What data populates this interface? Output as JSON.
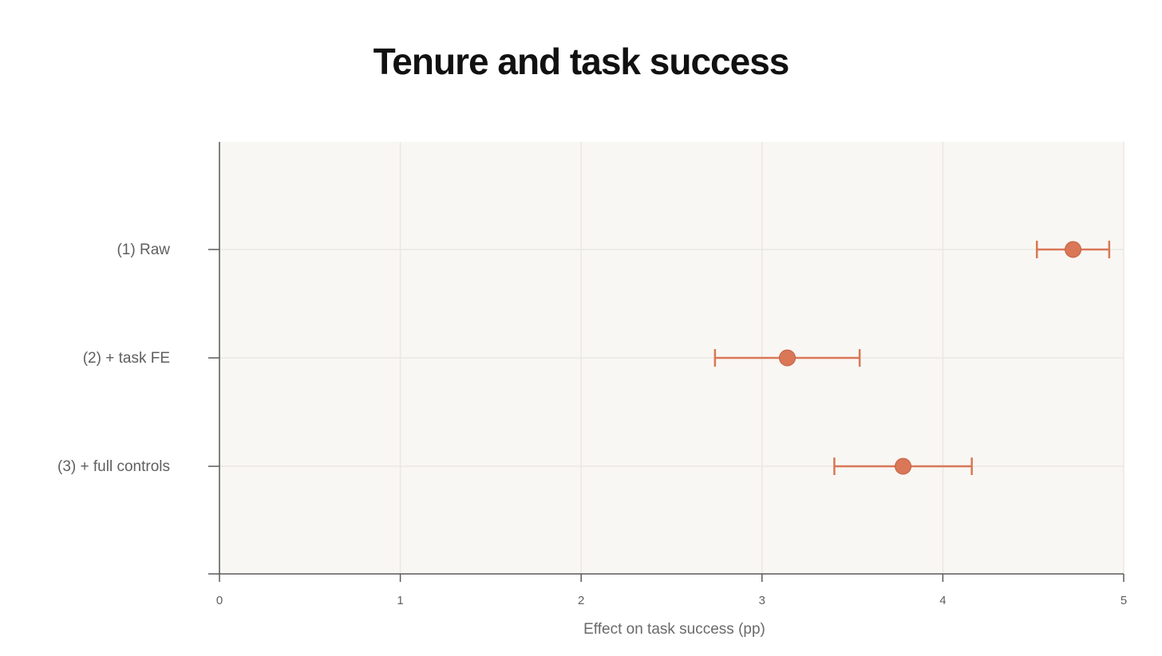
{
  "chart_data": {
    "type": "scatter",
    "title": "Tenure and task success",
    "xlabel": "Effect on task success (pp)",
    "ylabel": "",
    "xlim": [
      0,
      5
    ],
    "xticks": [
      "0",
      "1",
      "2",
      "3",
      "4",
      "5"
    ],
    "categories": [
      "(1) Raw",
      "(2) + task FE",
      "(3) + full controls"
    ],
    "estimates": [
      4.72,
      3.14,
      3.78
    ],
    "ci_low": [
      4.52,
      2.74,
      3.4
    ],
    "ci_high": [
      4.92,
      3.54,
      4.16
    ],
    "grid": true,
    "colors": {
      "marker": "#d97757",
      "plot_background": "#f9f7f3",
      "grid": "#ebe8e2",
      "axis": "#5a5a5a"
    }
  }
}
